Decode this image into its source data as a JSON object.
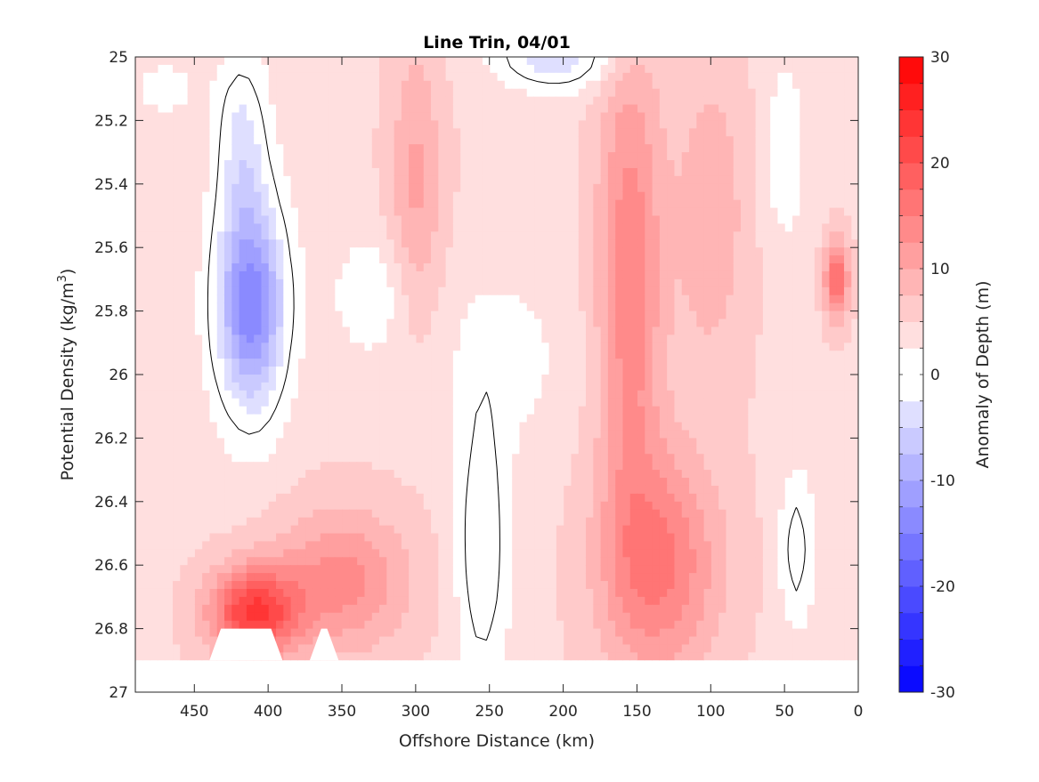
{
  "chart_data": {
    "type": "heatmap",
    "title": "Line Trin, 04/01",
    "xlabel": "Offshore Distance (km)",
    "ylabel": "Potential Density (kg/m",
    "ylabel_sup": "3",
    "ylabel_close": ")",
    "x_reversed": true,
    "xlim": [
      0,
      490
    ],
    "ylim": [
      25,
      27
    ],
    "y_reversed": true,
    "xticks": [
      "450",
      "400",
      "350",
      "300",
      "250",
      "200",
      "150",
      "100",
      "50",
      "0"
    ],
    "yticks": [
      "25",
      "25.2",
      "25.4",
      "25.6",
      "25.8",
      "26",
      "26.2",
      "26.4",
      "26.6",
      "26.8",
      "27"
    ],
    "colorbar": {
      "label": "Anomaly of Depth (m)",
      "range": [
        -30,
        30
      ],
      "ticks": [
        "30",
        "20",
        "10",
        "0",
        "-10",
        "-20",
        "-30"
      ],
      "levels": 24,
      "colormap": "blue-white-red",
      "low_color": "#0000ff",
      "mid_color": "#ffffff",
      "high_color": "#ff0000"
    },
    "zero_contour": true,
    "data_extent_density": [
      25,
      26.9
    ],
    "grid": false
  }
}
